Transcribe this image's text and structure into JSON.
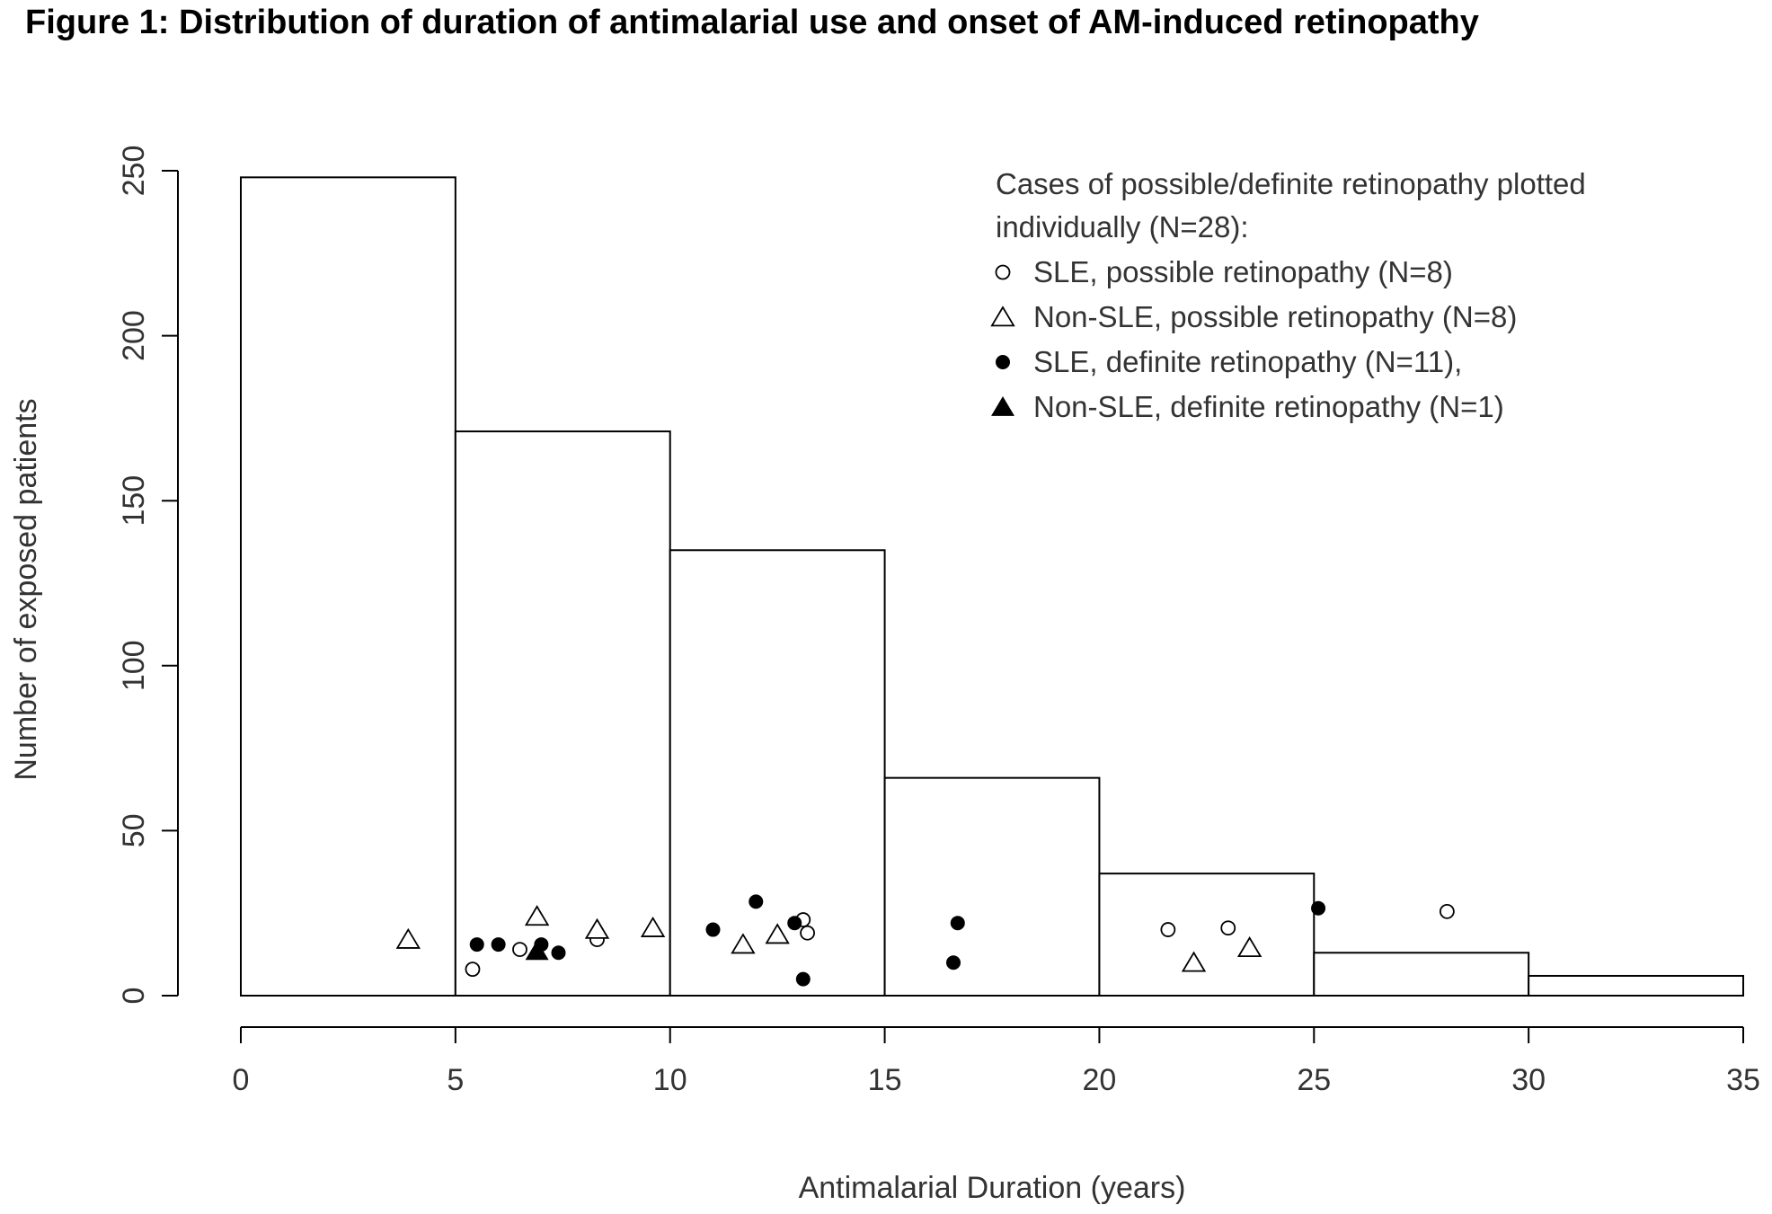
{
  "figure_title": "Figure 1: Distribution of duration of antimalarial use and onset of AM-induced retinopathy",
  "chart_data": {
    "type": "bar",
    "title": "Figure 1: Distribution of duration of antimalarial use and onset of AM-induced retinopathy",
    "xlabel": "Antimalarial Duration (years)",
    "ylabel": "Number of exposed patients",
    "xlim": [
      0,
      35
    ],
    "ylim": [
      0,
      250
    ],
    "xticks": [
      0,
      5,
      10,
      15,
      20,
      25,
      30,
      35
    ],
    "yticks": [
      0,
      50,
      100,
      150,
      200,
      250
    ],
    "grid": false,
    "histogram": {
      "bins": [
        [
          0,
          5
        ],
        [
          5,
          10
        ],
        [
          10,
          15
        ],
        [
          15,
          20
        ],
        [
          20,
          25
        ],
        [
          25,
          30
        ],
        [
          30,
          35
        ]
      ],
      "values": [
        248,
        171,
        135,
        66,
        37,
        13,
        6
      ]
    },
    "legend": {
      "position": "top-right",
      "title_lines": [
        "Cases of possible/definite retinopathy plotted",
        "individually (N=28):"
      ],
      "entries": [
        {
          "label": "SLE, possible retinopathy (N=8)",
          "marker": "open-circle"
        },
        {
          "label": "Non-SLE, possible retinopathy (N=8)",
          "marker": "open-triangle"
        },
        {
          "label": "SLE, definite retinopathy (N=11),",
          "marker": "filled-circle"
        },
        {
          "label": "Non-SLE, definite retinopathy (N=1)",
          "marker": "filled-triangle"
        }
      ]
    },
    "series": [
      {
        "name": "SLE, possible retinopathy (N=8)",
        "marker": "open-circle",
        "points": [
          [
            5.4,
            8
          ],
          [
            6.5,
            14
          ],
          [
            8.3,
            17
          ],
          [
            13.1,
            23
          ],
          [
            13.2,
            19
          ],
          [
            21.6,
            20
          ],
          [
            23.0,
            20.5
          ],
          [
            28.1,
            25.5
          ]
        ]
      },
      {
        "name": "Non-SLE, possible retinopathy (N=8)",
        "marker": "open-triangle",
        "points": [
          [
            3.9,
            17
          ],
          [
            6.9,
            24
          ],
          [
            8.3,
            20
          ],
          [
            9.6,
            20.5
          ],
          [
            11.7,
            15.5
          ],
          [
            12.5,
            18.5
          ],
          [
            22.2,
            10
          ],
          [
            23.5,
            14.5
          ]
        ]
      },
      {
        "name": "SLE, definite retinopathy (N=11),",
        "marker": "filled-circle",
        "points": [
          [
            5.5,
            15.5
          ],
          [
            6.0,
            15.5
          ],
          [
            7.0,
            15.5
          ],
          [
            7.4,
            13
          ],
          [
            11.0,
            20
          ],
          [
            12.0,
            28.5
          ],
          [
            12.9,
            22
          ],
          [
            13.1,
            5
          ],
          [
            16.6,
            10
          ],
          [
            16.7,
            22
          ],
          [
            25.1,
            26.5
          ]
        ]
      },
      {
        "name": "Non-SLE, definite retinopathy (N=1)",
        "marker": "filled-triangle",
        "points": [
          [
            6.9,
            13.5
          ]
        ]
      }
    ]
  }
}
